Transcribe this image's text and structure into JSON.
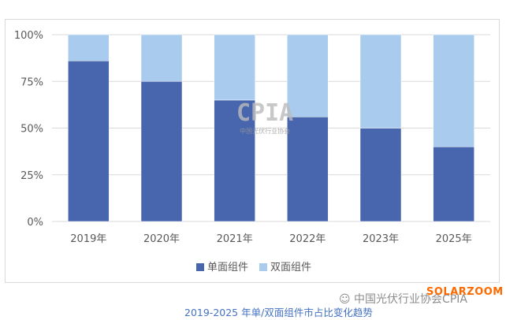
{
  "chart_data": {
    "type": "bar",
    "stacked": true,
    "categories": [
      "2019年",
      "2020年",
      "2021年",
      "2022年",
      "2023年",
      "2025年"
    ],
    "series": [
      {
        "name": "单面组件",
        "values": [
          86,
          75,
          65,
          56,
          50,
          40
        ],
        "color": "#4866ae"
      },
      {
        "name": "双面组件",
        "values": [
          14,
          25,
          35,
          44,
          50,
          60
        ],
        "color": "#a9cbee"
      }
    ],
    "ylim": [
      0,
      100
    ],
    "yticks": [
      "0%",
      "25%",
      "50%",
      "75%",
      "100%"
    ],
    "grid": true,
    "legend": "bottom"
  },
  "caption": "2019-2025 年单/双面组件市占比变化趋势",
  "watermark": {
    "text": "中国光伏行业协会CPIA",
    "overlay": "SOLARZOOM",
    "logo": "CPIA",
    "logo_sub": "中国光伏行业协会"
  }
}
